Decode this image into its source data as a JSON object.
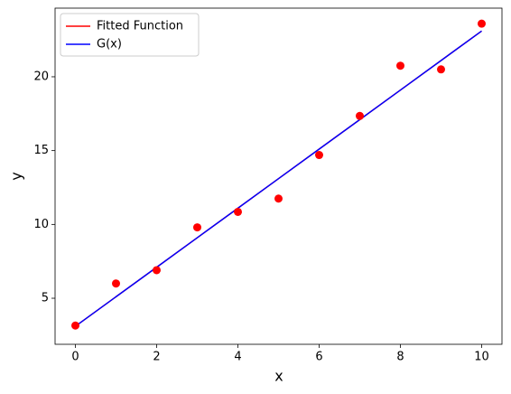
{
  "chart_data": {
    "type": "line",
    "x": [
      0,
      1,
      2,
      3,
      4,
      5,
      6,
      7,
      8,
      9,
      10
    ],
    "scatter": {
      "color": "red",
      "values": [
        3.15,
        6.0,
        6.9,
        9.8,
        10.85,
        11.75,
        14.7,
        17.35,
        20.75,
        20.5,
        23.6
      ]
    },
    "series": [
      {
        "name": "Fitted Function",
        "color": "red",
        "values": [
          3.1,
          5.1,
          7.1,
          9.1,
          11.1,
          13.1,
          15.1,
          17.1,
          19.1,
          21.1,
          23.1
        ]
      },
      {
        "name": "G(x)",
        "color": "blue",
        "values": [
          3.1,
          5.1,
          7.1,
          9.1,
          11.1,
          13.1,
          15.1,
          17.1,
          19.1,
          21.1,
          23.1
        ]
      }
    ],
    "x_label": "x",
    "y_label": "y",
    "xlim": [
      -0.5,
      10.5
    ],
    "ylim": [
      1.88,
      24.65
    ],
    "xticks": [
      0,
      2,
      4,
      6,
      8,
      10
    ],
    "yticks": [
      5,
      10,
      15,
      20
    ],
    "legend": "upper left"
  }
}
